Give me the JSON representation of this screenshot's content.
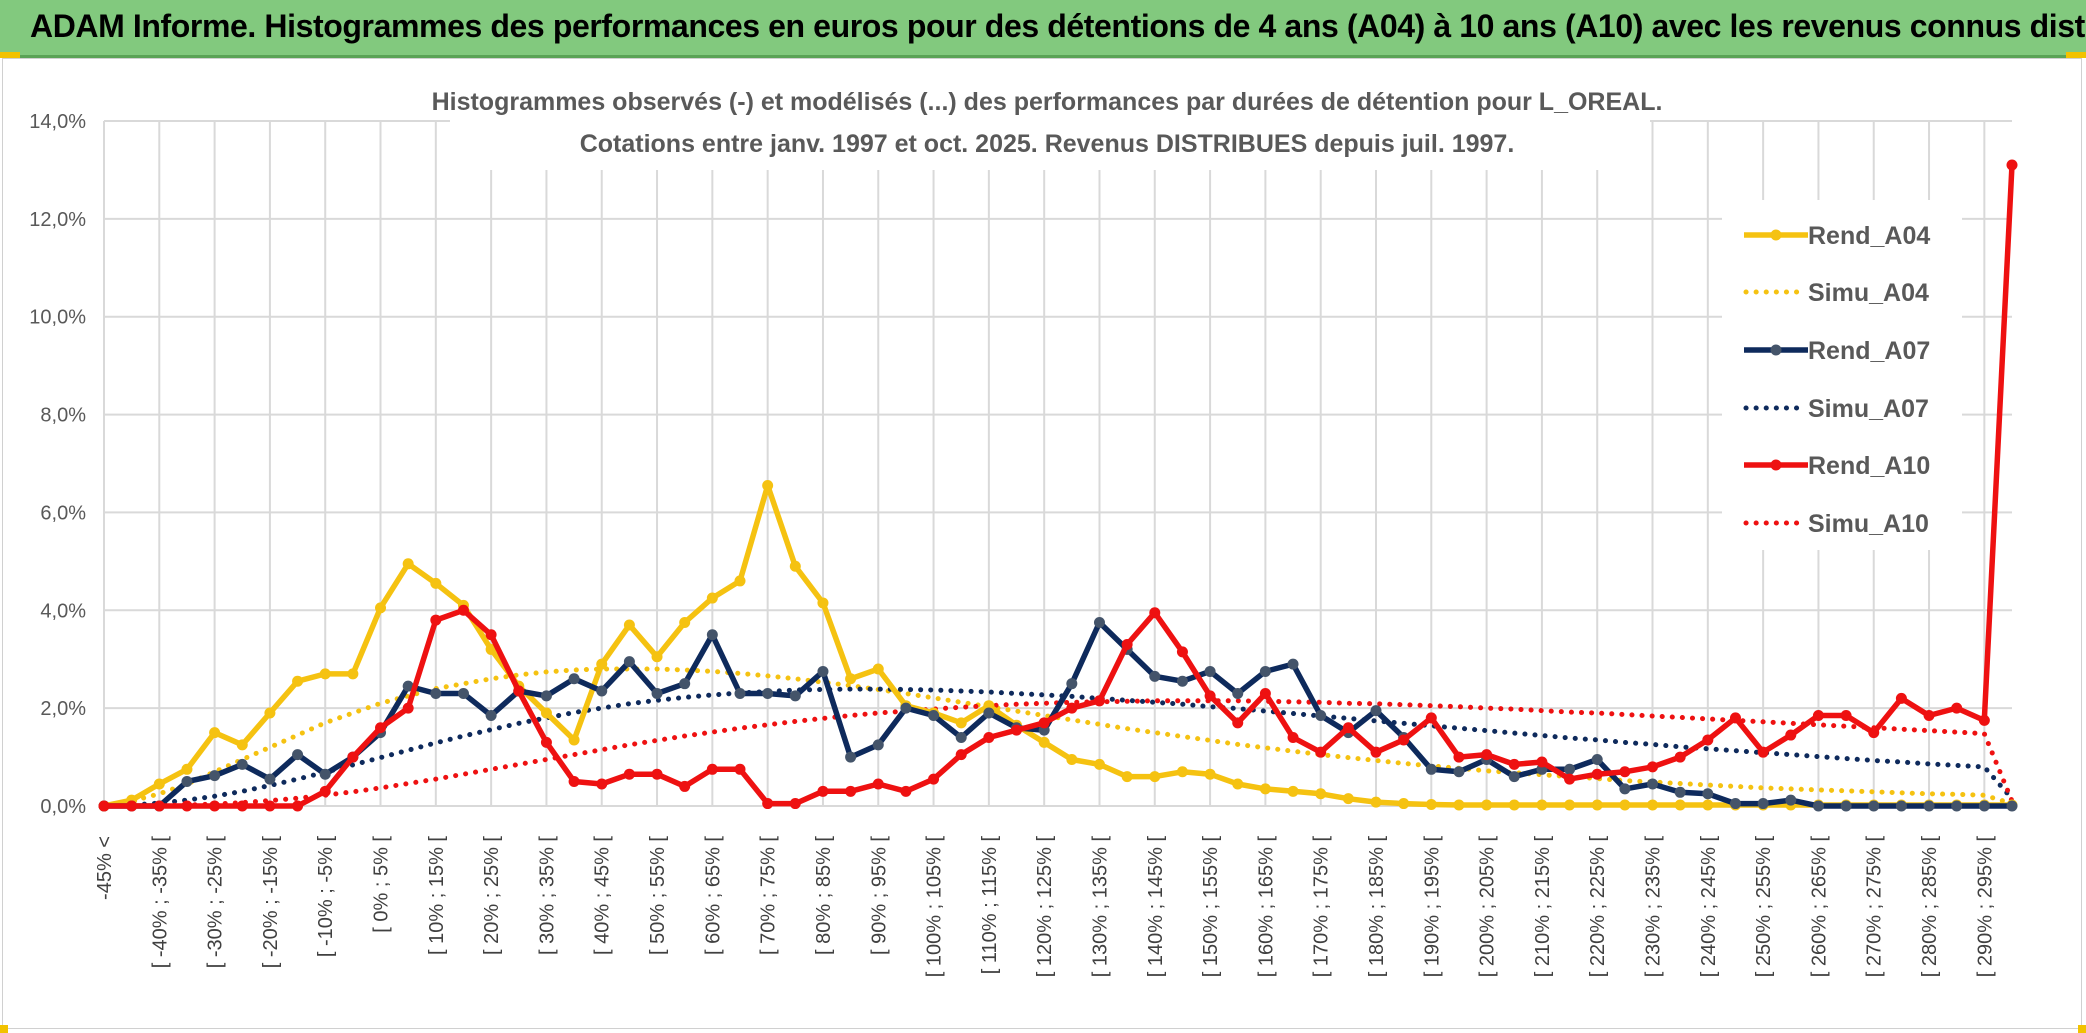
{
  "banner": {
    "title": "ADAM Informe. Histogrammes des performances en euros pour des détentions de 4 ans (A04) à 10 ans (A10) avec les revenus connus distribués"
  },
  "chart_data": {
    "type": "line",
    "title_line1": "Histogrammes observés (-) et modélisés (...) des performances par durées de détention pour L_OREAL.",
    "title_line2": "Cotations entre janv. 1997 et oct. 2025. Revenus DISTRIBUES depuis juil. 1997.",
    "ylim": [
      0,
      14
    ],
    "y_ticks": [
      "0,0%",
      "2,0%",
      "4,0%",
      "6,0%",
      "8,0%",
      "10,0%",
      "12,0%",
      "14,0%"
    ],
    "x_tick_labels": [
      "-45% <",
      "[ -40% ; -35% [",
      "[ -30% ; -25% [",
      "[ -20% ; -15% [",
      "[ -10% ; -5% [",
      "[ 0% ; 5% [",
      "[ 10% ; 15% [",
      "[ 20% ; 25% [",
      "[ 30% ; 35% [",
      "[ 40% ; 45% [",
      "[ 50% ; 55% [",
      "[ 60% ; 65% [",
      "[ 70% ; 75% [",
      "[ 80% ; 85% [",
      "[ 90% ; 95% [",
      "[ 100% ; 105% [",
      "[ 110% ; 115% [",
      "[ 120% ; 125% [",
      "[ 130% ; 135% [",
      "[ 140% ; 145% [",
      "[ 150% ; 155% [",
      "[ 160% ; 165% [",
      "[ 170% ; 175% [",
      "[ 180% ; 185% [",
      "[ 190% ; 195% [",
      "[ 200% ; 205% [",
      "[ 210% ; 215% [",
      "[ 220% ; 225% [",
      "[ 230% ; 235% [",
      "[ 240% ; 245% [",
      "[ 250% ; 255% [",
      "[ 260% ; 265% [",
      "[ 270% ; 275% [",
      "[ 280% ; 285% [",
      "[ 290% ; 295% ["
    ],
    "n_points": 70,
    "series": [
      {
        "name": "Rend_A04",
        "style": "solid",
        "color": "#f5c211",
        "values": [
          0.0,
          0.12,
          0.45,
          0.75,
          1.5,
          1.25,
          1.9,
          2.55,
          2.7,
          2.7,
          4.05,
          4.95,
          4.55,
          4.1,
          3.2,
          2.45,
          1.9,
          1.35,
          2.9,
          3.7,
          3.05,
          3.75,
          4.25,
          4.6,
          6.55,
          4.9,
          4.15,
          2.6,
          2.8,
          2.05,
          1.9,
          1.7,
          2.05,
          1.65,
          1.3,
          0.95,
          0.85,
          0.6,
          0.6,
          0.7,
          0.65,
          0.45,
          0.35,
          0.3,
          0.25,
          0.15,
          0.08,
          0.05,
          0.03,
          0.02,
          0.02,
          0.02,
          0.02,
          0.02,
          0.02,
          0.02,
          0.02,
          0.02,
          0.02,
          0.02,
          0.02,
          0.02,
          0.02,
          0.02,
          0.02,
          0.02,
          0.02,
          0.02,
          0.02,
          0.02
        ]
      },
      {
        "name": "Simu_A04",
        "style": "dotted",
        "color": "#f5c211",
        "values": [
          0.0,
          0.1,
          0.25,
          0.45,
          0.7,
          0.95,
          1.2,
          1.45,
          1.7,
          1.9,
          2.1,
          2.25,
          2.4,
          2.5,
          2.6,
          2.68,
          2.74,
          2.78,
          2.8,
          2.8,
          2.8,
          2.78,
          2.75,
          2.71,
          2.66,
          2.6,
          2.53,
          2.46,
          2.38,
          2.3,
          2.21,
          2.12,
          2.03,
          1.94,
          1.85,
          1.76,
          1.67,
          1.58,
          1.5,
          1.42,
          1.34,
          1.26,
          1.19,
          1.12,
          1.05,
          0.99,
          0.93,
          0.87,
          0.82,
          0.77,
          0.72,
          0.68,
          0.64,
          0.6,
          0.56,
          0.52,
          0.49,
          0.46,
          0.43,
          0.4,
          0.37,
          0.35,
          0.33,
          0.31,
          0.29,
          0.27,
          0.25,
          0.24,
          0.22,
          0.05
        ]
      },
      {
        "name": "Rend_A07",
        "style": "solid-marker",
        "color": "#0e2a5c",
        "values": [
          0.0,
          0.0,
          0.0,
          0.5,
          0.62,
          0.85,
          0.55,
          1.05,
          0.65,
          1.0,
          1.5,
          2.45,
          2.3,
          2.3,
          1.85,
          2.35,
          2.25,
          2.6,
          2.35,
          2.95,
          2.3,
          2.5,
          3.5,
          2.3,
          2.3,
          2.25,
          2.75,
          1.0,
          1.25,
          2.0,
          1.85,
          1.4,
          1.9,
          1.6,
          1.55,
          2.5,
          3.75,
          3.2,
          2.65,
          2.55,
          2.75,
          2.3,
          2.75,
          2.9,
          1.85,
          1.5,
          1.95,
          1.4,
          0.75,
          0.7,
          0.95,
          0.6,
          0.75,
          0.75,
          0.95,
          0.35,
          0.45,
          0.28,
          0.25,
          0.05,
          0.05,
          0.12,
          0.0,
          0.0,
          0.0,
          0.0,
          0.0,
          0.0,
          0.0,
          0.0
        ]
      },
      {
        "name": "Simu_A07",
        "style": "dotted",
        "color": "#0e2a5c",
        "values": [
          0.0,
          0.02,
          0.06,
          0.12,
          0.2,
          0.3,
          0.42,
          0.55,
          0.69,
          0.84,
          0.99,
          1.14,
          1.29,
          1.43,
          1.56,
          1.69,
          1.8,
          1.91,
          2.0,
          2.09,
          2.16,
          2.22,
          2.27,
          2.31,
          2.34,
          2.37,
          2.38,
          2.39,
          2.39,
          2.38,
          2.37,
          2.35,
          2.33,
          2.3,
          2.27,
          2.24,
          2.2,
          2.16,
          2.12,
          2.08,
          2.03,
          1.99,
          1.94,
          1.89,
          1.84,
          1.79,
          1.74,
          1.69,
          1.64,
          1.59,
          1.54,
          1.49,
          1.44,
          1.39,
          1.35,
          1.3,
          1.26,
          1.21,
          1.17,
          1.13,
          1.09,
          1.05,
          1.01,
          0.97,
          0.93,
          0.9,
          0.86,
          0.83,
          0.8,
          0.15
        ]
      },
      {
        "name": "Rend_A10",
        "style": "solid-marker",
        "color": "#ee1111",
        "values": [
          0.0,
          0.0,
          0.0,
          0.0,
          0.0,
          0.0,
          0.0,
          0.0,
          0.3,
          1.0,
          1.6,
          2.0,
          3.8,
          4.0,
          3.5,
          2.35,
          1.3,
          0.5,
          0.45,
          0.65,
          0.65,
          0.4,
          0.75,
          0.75,
          0.05,
          0.05,
          0.3,
          0.3,
          0.45,
          0.3,
          0.55,
          1.05,
          1.4,
          1.55,
          1.7,
          2.0,
          2.15,
          3.3,
          3.95,
          3.15,
          2.25,
          1.7,
          2.3,
          1.4,
          1.1,
          1.6,
          1.1,
          1.35,
          1.8,
          1.0,
          1.05,
          0.85,
          0.9,
          0.55,
          0.65,
          0.7,
          0.8,
          1.0,
          1.35,
          1.8,
          1.1,
          1.45,
          1.85,
          1.85,
          1.5,
          2.2,
          1.85,
          2.0,
          1.75,
          13.1
        ]
      },
      {
        "name": "Simu_A10",
        "style": "dotted",
        "color": "#ee1111",
        "values": [
          0.0,
          0.0,
          0.01,
          0.02,
          0.04,
          0.07,
          0.11,
          0.16,
          0.22,
          0.29,
          0.37,
          0.46,
          0.55,
          0.65,
          0.75,
          0.85,
          0.95,
          1.05,
          1.15,
          1.25,
          1.34,
          1.43,
          1.51,
          1.59,
          1.66,
          1.73,
          1.79,
          1.85,
          1.9,
          1.94,
          1.98,
          2.02,
          2.05,
          2.08,
          2.1,
          2.12,
          2.13,
          2.14,
          2.15,
          2.15,
          2.15,
          2.15,
          2.14,
          2.13,
          2.12,
          2.1,
          2.09,
          2.07,
          2.05,
          2.03,
          2.0,
          1.98,
          1.95,
          1.92,
          1.9,
          1.87,
          1.84,
          1.81,
          1.78,
          1.75,
          1.72,
          1.69,
          1.66,
          1.63,
          1.6,
          1.57,
          1.54,
          1.51,
          1.48,
          0.1
        ]
      }
    ]
  },
  "legend": {
    "items": [
      {
        "label": "Rend_A04",
        "color": "#f5c211",
        "style": "solid-marker"
      },
      {
        "label": "Simu_A04",
        "color": "#f5c211",
        "style": "dotted"
      },
      {
        "label": "Rend_A07",
        "color": "#0e2a5c",
        "style": "solid-marker"
      },
      {
        "label": "Simu_A07",
        "color": "#0e2a5c",
        "style": "dotted"
      },
      {
        "label": "Rend_A10",
        "color": "#ee1111",
        "style": "solid-marker"
      },
      {
        "label": "Simu_A10",
        "color": "#ee1111",
        "style": "dotted"
      }
    ]
  }
}
